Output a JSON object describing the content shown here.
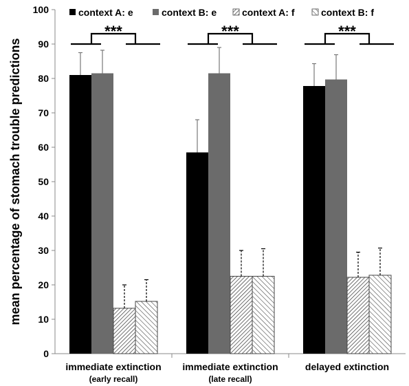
{
  "chart_data": {
    "type": "bar",
    "categories": [
      {
        "label": "immediate extinction",
        "sublabel": "(early recall)"
      },
      {
        "label": "immediate extinction",
        "sublabel": "(late recall)"
      },
      {
        "label": "delayed extinction",
        "sublabel": ""
      }
    ],
    "series": [
      {
        "name": "context A: e",
        "fill": "solid-black",
        "values": [
          81,
          58.5,
          77.8
        ],
        "errors": [
          6.5,
          9.5,
          6.5
        ],
        "error_style": "solid"
      },
      {
        "name": "context B: e",
        "fill": "solid-gray",
        "values": [
          81.5,
          81.5,
          79.7
        ],
        "errors": [
          6.7,
          7.5,
          7.2
        ],
        "error_style": "solid"
      },
      {
        "name": "context A: f",
        "fill": "hatch-dense",
        "values": [
          13.2,
          22.5,
          22.2
        ],
        "errors": [
          6.8,
          7.5,
          7.3
        ],
        "error_style": "dashed"
      },
      {
        "name": "context B: f",
        "fill": "hatch-light",
        "values": [
          15.2,
          22.5,
          22.8
        ],
        "errors": [
          6.3,
          8.0,
          7.9
        ],
        "error_style": "dashed"
      }
    ],
    "ylabel": "mean percentage of stomach trouble predictions",
    "xlabel": "",
    "ylim": [
      0,
      100
    ],
    "yticks": [
      0,
      10,
      20,
      30,
      40,
      50,
      60,
      70,
      80,
      90,
      100
    ],
    "legend_position": "top",
    "grid": false,
    "significance": {
      "label": "***",
      "groups": [
        0,
        1,
        2
      ]
    }
  },
  "colors": {
    "black": "#000000",
    "gray": "#6b6b6b",
    "axis": "#888888",
    "hatch": "#555555"
  }
}
